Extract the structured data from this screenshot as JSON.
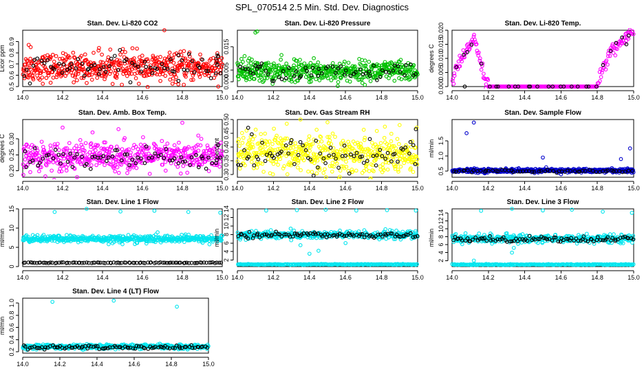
{
  "figure": {
    "title": "SPL_070514  2.5 Min. Std. Dev. Diagnostics"
  },
  "chart_data": [
    {
      "id": "co2",
      "type": "scatter",
      "title": "Stan. Dev. Li-820 CO2",
      "ylabel": "Licor ppm",
      "xlim": [
        14.0,
        15.0
      ],
      "ylim": [
        0.5,
        1.0
      ],
      "xticks": [
        14.0,
        14.2,
        14.4,
        14.6,
        14.8,
        15.0
      ],
      "xtick_labels": [
        "14.0",
        "14.2",
        "14.4",
        "14.6",
        "14.8",
        "15.0"
      ],
      "yticks": [
        0.5,
        0.6,
        0.7,
        0.8,
        0.9
      ],
      "ytick_labels": [
        "0.5",
        "0.6",
        "0.7",
        "0.8",
        "0.9"
      ],
      "series": [
        {
          "name": "cloud",
          "color": "#ff0000",
          "gen": {
            "type": "band",
            "n": 520,
            "center": 0.67,
            "spread": 0.06,
            "x0": 14.0,
            "x1": 15.0
          },
          "points": [
            [
              14.03,
              0.87
            ],
            [
              14.04,
              0.85
            ],
            [
              14.71,
              1.0
            ],
            [
              14.69,
              0.55
            ],
            [
              14.78,
              0.52
            ],
            [
              14.98,
              0.5
            ],
            [
              14.55,
              0.84
            ],
            [
              14.38,
              0.82
            ]
          ]
        },
        {
          "name": "detail",
          "color": "#000000",
          "gen": {
            "type": "band",
            "n": 70,
            "center": 0.67,
            "spread": 0.05,
            "x0": 14.0,
            "x1": 15.0
          },
          "points": [
            [
              14.78,
              0.78
            ],
            [
              14.98,
              0.77
            ]
          ]
        }
      ]
    },
    {
      "id": "pressure",
      "type": "scatter",
      "title": "Stan. Dev. Li-820 Pressure",
      "ylabel": "kPa",
      "xlim": [
        14.0,
        15.0
      ],
      "ylim": [
        -0.002,
        0.022
      ],
      "xticks": [
        14.0,
        14.2,
        14.4,
        14.6,
        14.8,
        15.0
      ],
      "xtick_labels": [
        "14.0",
        "14.2",
        "14.4",
        "14.6",
        "14.8",
        "15.0"
      ],
      "yticks": [
        0.0,
        0.005,
        0.015
      ],
      "ytick_labels": [
        "0.000",
        "0.005",
        "0.015"
      ],
      "series": [
        {
          "name": "cloud",
          "color": "#00c000",
          "gen": {
            "type": "band",
            "n": 520,
            "center": 0.0045,
            "spread": 0.0022,
            "x0": 14.0,
            "x1": 15.0
          },
          "points": [
            [
              14.1,
              0.021
            ],
            [
              14.11,
              0.0215
            ],
            [
              14.04,
              0.011
            ],
            [
              14.06,
              0.009
            ],
            [
              14.08,
              0.0095
            ],
            [
              14.03,
              0.0085
            ]
          ]
        },
        {
          "name": "detail",
          "color": "#000000",
          "gen": {
            "type": "band",
            "n": 60,
            "center": 0.004,
            "spread": 0.0018,
            "x0": 14.0,
            "x1": 15.0
          },
          "points": [
            [
              14.1,
              0.007
            ],
            [
              14.12,
              0.0065
            ]
          ]
        }
      ]
    },
    {
      "id": "temp",
      "type": "scatter",
      "title": "Stan. Dev. Li-820 Temp.",
      "ylabel": "degrees C",
      "xlim": [
        14.0,
        15.0
      ],
      "ylim": [
        0.0,
        0.02
      ],
      "xticks": [
        14.0,
        14.2,
        14.4,
        14.6,
        14.8,
        15.0
      ],
      "xtick_labels": [
        "14.0",
        "14.2",
        "14.4",
        "14.6",
        "14.8",
        "15.0"
      ],
      "yticks": [
        0.0,
        0.005,
        0.01,
        0.015,
        0.02
      ],
      "ytick_labels": [
        "0.000",
        "0.005",
        "0.010",
        "0.015",
        "0.020"
      ],
      "series": [
        {
          "name": "cloud",
          "color": "#ff00ff",
          "gen": {
            "type": "curve",
            "n": 300,
            "x0": 14.0,
            "x1": 15.0,
            "spread": 0.0012,
            "knots": [
              [
                14.0,
                0.0
              ],
              [
                14.02,
                0.006
              ],
              [
                14.07,
                0.011
              ],
              [
                14.12,
                0.018
              ],
              [
                14.15,
                0.011
              ],
              [
                14.18,
                0.003
              ],
              [
                14.2,
                0.0
              ],
              [
                14.8,
                0.0
              ],
              [
                14.84,
                0.008
              ],
              [
                14.88,
                0.013
              ],
              [
                14.94,
                0.016
              ],
              [
                15.0,
                0.0195
              ]
            ]
          },
          "points": []
        },
        {
          "name": "detail",
          "color": "#000000",
          "gen": {
            "type": "curve",
            "n": 28,
            "x0": 14.0,
            "x1": 15.0,
            "spread": 0.0008,
            "knots": [
              [
                14.0,
                0.0
              ],
              [
                14.02,
                0.006
              ],
              [
                14.07,
                0.011
              ],
              [
                14.12,
                0.017
              ],
              [
                14.15,
                0.011
              ],
              [
                14.18,
                0.003
              ],
              [
                14.2,
                0.0
              ],
              [
                14.8,
                0.0
              ],
              [
                14.84,
                0.008
              ],
              [
                14.88,
                0.013
              ],
              [
                14.94,
                0.016
              ],
              [
                15.0,
                0.0185
              ]
            ]
          },
          "points": [
            [
              14.07,
              0.0
            ],
            [
              14.96,
              0.015
            ]
          ]
        }
      ]
    },
    {
      "id": "ambbox",
      "type": "scatter",
      "title": "Stan. Dev. Amb. Box Temp.",
      "ylabel": "degrees C",
      "xlim": [
        14.0,
        15.0
      ],
      "ylim": [
        0.18,
        0.36
      ],
      "xticks": [
        14.0,
        14.2,
        14.4,
        14.6,
        14.8,
        15.0
      ],
      "xtick_labels": [
        "14.0",
        "14.2",
        "14.4",
        "14.6",
        "14.8",
        "15.0"
      ],
      "yticks": [
        0.2,
        0.25,
        0.3
      ],
      "ytick_labels": [
        "0.20",
        "0.25",
        "0.30"
      ],
      "series": [
        {
          "name": "cloud",
          "color": "#ff00ff",
          "gen": {
            "type": "band",
            "n": 520,
            "center": 0.245,
            "spread": 0.022,
            "x0": 14.0,
            "x1": 15.0
          },
          "points": [
            [
              14.2,
              0.335
            ],
            [
              14.8,
              0.35
            ],
            [
              14.35,
              0.32
            ],
            [
              14.48,
              0.33
            ],
            [
              14.88,
              0.31
            ]
          ]
        },
        {
          "name": "detail",
          "color": "#000000",
          "gen": {
            "type": "band",
            "n": 70,
            "center": 0.238,
            "spread": 0.018,
            "x0": 14.0,
            "x1": 15.0
          },
          "points": [
            [
              14.98,
              0.28
            ]
          ]
        }
      ]
    },
    {
      "id": "rh",
      "type": "scatter",
      "title": "Stan. Dev. Gas Stream RH",
      "ylabel": "percent",
      "xlim": [
        14.0,
        15.0
      ],
      "ylim": [
        0.29,
        0.5
      ],
      "xticks": [
        14.0,
        14.2,
        14.4,
        14.6,
        14.8,
        15.0
      ],
      "xtick_labels": [
        "14.0",
        "14.2",
        "14.4",
        "14.6",
        "14.8",
        "15.0"
      ],
      "yticks": [
        0.3,
        0.35,
        0.4,
        0.45,
        0.5
      ],
      "ytick_labels": [
        "0.30",
        "0.35",
        "0.40",
        "0.45",
        "0.50"
      ],
      "series": [
        {
          "name": "cloud",
          "color": "#ffff00",
          "gen": {
            "type": "band",
            "n": 520,
            "center": 0.375,
            "spread": 0.035,
            "x0": 14.0,
            "x1": 15.0
          },
          "points": [
            [
              14.35,
              0.5
            ],
            [
              14.5,
              0.49
            ],
            [
              14.9,
              0.48
            ]
          ]
        },
        {
          "name": "detail",
          "color": "#000000",
          "gen": {
            "type": "band",
            "n": 70,
            "center": 0.37,
            "spread": 0.032,
            "x0": 14.0,
            "x1": 15.0
          },
          "points": [
            [
              14.06,
              0.47
            ],
            [
              14.99,
              0.465
            ]
          ]
        }
      ]
    },
    {
      "id": "sample",
      "type": "scatter",
      "title": "Stan. Dev. Sample Flow",
      "ylabel": "ml/min",
      "xlim": [
        14.0,
        15.0
      ],
      "ylim": [
        0.3,
        2.2
      ],
      "xticks": [
        14.0,
        14.2,
        14.4,
        14.6,
        14.8,
        15.0
      ],
      "xtick_labels": [
        "14.0",
        "14.2",
        "14.4",
        "14.6",
        "14.8",
        "15.0"
      ],
      "yticks": [
        0.5,
        1.0,
        1.5
      ],
      "ytick_labels": [
        "0.5",
        "1.0",
        "1.5"
      ],
      "series": [
        {
          "name": "cloud",
          "color": "#0000cc",
          "gen": {
            "type": "band",
            "n": 520,
            "center": 0.52,
            "spread": 0.03,
            "x0": 14.0,
            "x1": 15.0
          },
          "points": [
            [
              14.12,
              2.1
            ],
            [
              14.08,
              1.75
            ],
            [
              14.5,
              0.95
            ],
            [
              14.93,
              0.9
            ],
            [
              14.98,
              1.25
            ],
            [
              14.88,
              0.6
            ],
            [
              14.6,
              0.4
            ],
            [
              14.33,
              0.58
            ]
          ]
        },
        {
          "name": "detail",
          "color": "#000000",
          "gen": {
            "type": "band",
            "n": 60,
            "center": 0.5,
            "spread": 0.02,
            "x0": 14.0,
            "x1": 15.0
          },
          "points": []
        }
      ]
    },
    {
      "id": "line1",
      "type": "scatter",
      "title": "Stan. Dev. Line 1 Flow",
      "ylabel": "ml/min",
      "xlim": [
        14.0,
        15.0
      ],
      "ylim": [
        0.0,
        15.0
      ],
      "xticks": [
        14.0,
        14.2,
        14.4,
        14.6,
        14.8,
        15.0
      ],
      "xtick_labels": [
        "14.0",
        "14.2",
        "14.4",
        "14.6",
        "14.8",
        "15.0"
      ],
      "yticks": [
        0,
        5,
        10,
        15
      ],
      "ytick_labels": [
        "0",
        "5",
        "10",
        "15"
      ],
      "series": [
        {
          "name": "cloud",
          "color": "#00e5ee",
          "gen": {
            "type": "band",
            "n": 480,
            "center": 7.2,
            "spread": 0.45,
            "x0": 14.0,
            "x1": 15.0
          },
          "points": [
            [
              14.16,
              14.2
            ],
            [
              14.32,
              15.0
            ],
            [
              14.49,
              14.3
            ],
            [
              14.66,
              14.5
            ],
            [
              14.83,
              14.2
            ],
            [
              14.99,
              14.0
            ],
            [
              14.5,
              5.8
            ],
            [
              14.62,
              6.0
            ]
          ]
        },
        {
          "name": "detail",
          "color": "#000000",
          "gen": {
            "type": "band",
            "n": 95,
            "center": 1.0,
            "spread": 0.05,
            "x0": 14.0,
            "x1": 15.0
          },
          "points": []
        }
      ]
    },
    {
      "id": "line2",
      "type": "scatter",
      "title": "Stan. Dev. Line 2 Flow",
      "ylabel": "ml/min",
      "xlim": [
        14.0,
        15.0
      ],
      "ylim": [
        0.5,
        14.0
      ],
      "xticks": [
        14.0,
        14.2,
        14.4,
        14.6,
        14.8,
        15.0
      ],
      "xtick_labels": [
        "14.0",
        "14.2",
        "14.4",
        "14.6",
        "14.8",
        "15.0"
      ],
      "yticks": [
        2,
        4,
        6,
        8,
        10,
        12,
        14
      ],
      "ytick_labels": [
        "2",
        "4",
        "6",
        "8",
        "10",
        "12",
        "14"
      ],
      "series": [
        {
          "name": "cloud",
          "color": "#00e5ee",
          "gen": {
            "type": "band",
            "n": 400,
            "center": 7.9,
            "spread": 0.45,
            "x0": 14.0,
            "x1": 15.0
          },
          "points": [
            [
              14.16,
              13.6
            ],
            [
              14.33,
              13.7
            ],
            [
              14.49,
              13.8
            ],
            [
              14.66,
              13.6
            ],
            [
              14.83,
              13.7
            ],
            [
              14.99,
              13.6
            ],
            [
              14.4,
              3.5
            ],
            [
              14.45,
              4.2
            ],
            [
              14.6,
              6.0
            ],
            [
              14.35,
              5.5
            ]
          ]
        },
        {
          "name": "lower",
          "color": "#00e5ee",
          "gen": {
            "type": "band",
            "n": 240,
            "center": 1.0,
            "spread": 0.05,
            "x0": 14.0,
            "x1": 15.0
          },
          "points": []
        },
        {
          "name": "detail",
          "color": "#000000",
          "gen": {
            "type": "band",
            "n": 90,
            "center": 7.9,
            "spread": 0.3,
            "x0": 14.0,
            "x1": 15.0
          },
          "points": []
        }
      ]
    },
    {
      "id": "line3",
      "type": "scatter",
      "title": "Stan. Dev. Line 3 Flow",
      "ylabel": "ml/min",
      "xlim": [
        14.0,
        15.0
      ],
      "ylim": [
        0.5,
        15.0
      ],
      "xticks": [
        14.0,
        14.2,
        14.4,
        14.6,
        14.8,
        15.0
      ],
      "xtick_labels": [
        "14.0",
        "14.2",
        "14.4",
        "14.6",
        "14.8",
        "15.0"
      ],
      "yticks": [
        2,
        4,
        6,
        8,
        10,
        12,
        14
      ],
      "ytick_labels": [
        "2",
        "4",
        "6",
        "8",
        "10",
        "12",
        "14"
      ],
      "series": [
        {
          "name": "cloud",
          "color": "#00e5ee",
          "gen": {
            "type": "band",
            "n": 400,
            "center": 7.5,
            "spread": 0.5,
            "x0": 14.0,
            "x1": 15.0
          },
          "points": [
            [
              14.16,
              14.5
            ],
            [
              14.33,
              15.0
            ],
            [
              14.5,
              14.6
            ],
            [
              14.66,
              14.8
            ],
            [
              14.83,
              14.3
            ],
            [
              14.99,
              14.0
            ],
            [
              14.33,
              4.0
            ],
            [
              14.34,
              5.2
            ],
            [
              14.12,
              2.0
            ]
          ]
        },
        {
          "name": "lower",
          "color": "#00e5ee",
          "gen": {
            "type": "band",
            "n": 240,
            "center": 1.0,
            "spread": 0.06,
            "x0": 14.0,
            "x1": 15.0
          },
          "points": []
        },
        {
          "name": "detail",
          "color": "#000000",
          "gen": {
            "type": "band",
            "n": 90,
            "center": 7.4,
            "spread": 0.35,
            "x0": 14.0,
            "x1": 15.0
          },
          "points": []
        }
      ]
    },
    {
      "id": "line4",
      "type": "scatter",
      "title": "Stan. Dev. Line 4 (LT) Flow",
      "ylabel": "ml/min",
      "xlim": [
        14.0,
        15.0
      ],
      "ylim": [
        0.18,
        1.08
      ],
      "xticks": [
        14.0,
        14.2,
        14.4,
        14.6,
        14.8,
        15.0
      ],
      "xtick_labels": [
        "14.0",
        "14.2",
        "14.4",
        "14.6",
        "14.8",
        "15.0"
      ],
      "yticks": [
        0.2,
        0.4,
        0.6,
        0.8,
        1.0
      ],
      "ytick_labels": [
        "0.2",
        "0.4",
        "0.6",
        "0.8",
        "1.0"
      ],
      "series": [
        {
          "name": "cloud",
          "color": "#00e5ee",
          "gen": {
            "type": "band",
            "n": 480,
            "center": 0.285,
            "spread": 0.018,
            "x0": 14.0,
            "x1": 15.0
          },
          "points": [
            [
              14.16,
              1.02
            ],
            [
              14.49,
              1.04
            ],
            [
              14.83,
              0.94
            ]
          ]
        },
        {
          "name": "detail",
          "color": "#000000",
          "gen": {
            "type": "band",
            "n": 90,
            "center": 0.275,
            "spread": 0.015,
            "x0": 14.0,
            "x1": 15.0
          },
          "points": []
        }
      ]
    }
  ]
}
